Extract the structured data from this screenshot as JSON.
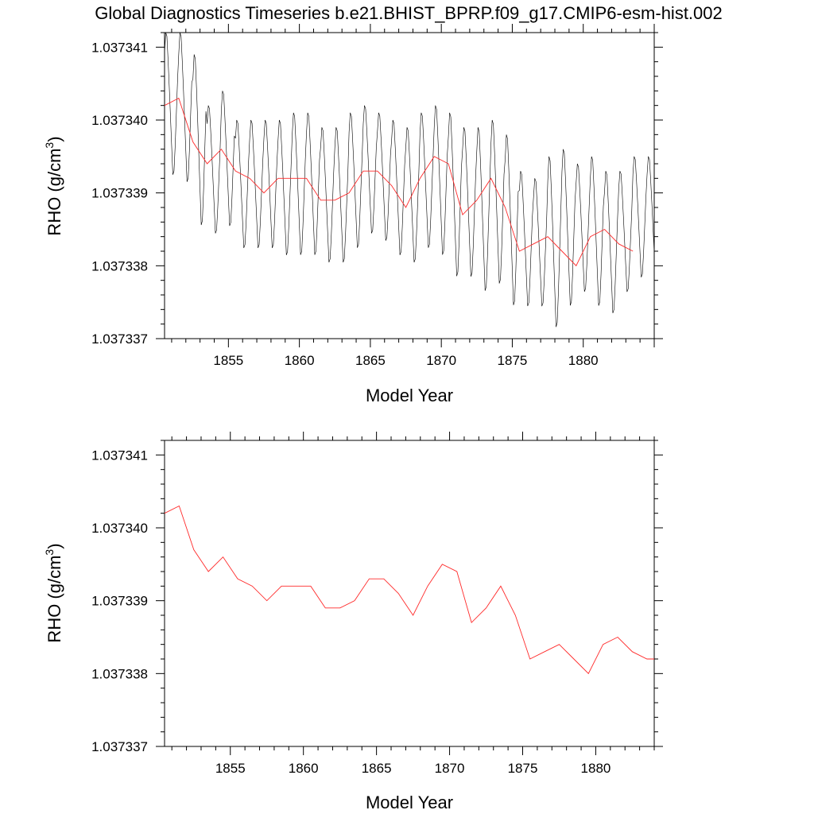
{
  "title": "Global Diagnostics Timeseries b.e21.BHIST_BPRP.f09_g17.CMIP6-esm-hist.002",
  "colors": {
    "annual": "#ff2a2a",
    "monthly": "#000000",
    "background": "#ffffff"
  },
  "chart_data": [
    {
      "type": "line",
      "title": "Global Diagnostics Timeseries b.e21.BHIST_BPRP.f09_g17.CMIP6-esm-hist.002",
      "xlabel": "Model Year",
      "ylabel": "RHO (g/cm",
      "ylabel_superscript": "3",
      "ylabel_suffix": ")",
      "xlim": [
        1850.5,
        1885
      ],
      "ylim": [
        1.037337,
        1.0373412
      ],
      "x_ticks": [
        1855,
        1860,
        1865,
        1870,
        1875,
        1880
      ],
      "x_tick_labels": [
        "1855",
        "1860",
        "1865",
        "1870",
        "1875",
        "1880"
      ],
      "y_ticks": [
        1.037337,
        1.037338,
        1.037339,
        1.03734,
        1.037341
      ],
      "y_tick_labels": [
        "1.037337",
        "1.037338",
        "1.037339",
        "1.037340",
        "1.037341"
      ],
      "grid": false,
      "series": [
        {
          "name": "monthly",
          "color": "#000000",
          "seasonal_cycle": {
            "start_year": 1850.5,
            "points_per_year": 12,
            "phase_months": [
              0.72,
              1.0,
              0.95,
              0.62,
              0.25,
              -0.15,
              -0.55,
              -0.95,
              -0.9,
              -0.55,
              -0.1,
              0.35
            ]
          },
          "yearly_peak": [
            1.0373412,
            1.0373412,
            1.0373409,
            1.0373402,
            1.0373404,
            1.03734,
            1.03734,
            1.03734,
            1.03734,
            1.0373401,
            1.0373401,
            1.0373399,
            1.0373399,
            1.0373401,
            1.0373402,
            1.0373401,
            1.03734,
            1.0373399,
            1.0373401,
            1.0373402,
            1.0373401,
            1.0373399,
            1.0373399,
            1.03734,
            1.0373398,
            1.0373393,
            1.0373392,
            1.0373395,
            1.0373396,
            1.0373394,
            1.0373395,
            1.0373393,
            1.0373393,
            1.0373395,
            1.0373395
          ],
          "yearly_trough": [
            1.0373392,
            1.0373391,
            1.0373385,
            1.0373384,
            1.0373385,
            1.0373382,
            1.0373382,
            1.0373382,
            1.0373381,
            1.0373381,
            1.0373381,
            1.037338,
            1.037338,
            1.0373382,
            1.0373384,
            1.0373383,
            1.0373381,
            1.037338,
            1.0373382,
            1.0373381,
            1.0373378,
            1.0373378,
            1.0373376,
            1.0373377,
            1.0373374,
            1.0373374,
            1.0373374,
            1.0373371,
            1.0373374,
            1.0373376,
            1.0373374,
            1.0373373,
            1.0373376,
            1.0373378,
            1.0373378
          ]
        },
        {
          "name": "annual mean",
          "color": "#ff2a2a",
          "x": [
            1850.5,
            1851.5,
            1852.5,
            1853.5,
            1854.5,
            1855.5,
            1856.5,
            1857.5,
            1858.5,
            1859.5,
            1860.5,
            1861.5,
            1862.5,
            1863.5,
            1864.5,
            1865.5,
            1866.5,
            1867.5,
            1868.5,
            1869.5,
            1870.5,
            1871.5,
            1872.5,
            1873.5,
            1874.5,
            1875.5,
            1876.5,
            1877.5,
            1878.5,
            1879.5,
            1880.5,
            1881.5,
            1882.5,
            1883.5
          ],
          "values": [
            1.0373402,
            1.0373403,
            1.0373397,
            1.0373394,
            1.0373396,
            1.0373393,
            1.0373392,
            1.037339,
            1.0373392,
            1.0373392,
            1.0373392,
            1.0373389,
            1.0373389,
            1.037339,
            1.0373393,
            1.0373393,
            1.0373391,
            1.0373388,
            1.0373392,
            1.0373395,
            1.0373394,
            1.0373387,
            1.0373389,
            1.0373392,
            1.0373388,
            1.0373382,
            1.0373383,
            1.0373384,
            1.0373382,
            1.037338,
            1.0373384,
            1.0373385,
            1.0373383,
            1.0373382
          ]
        }
      ]
    },
    {
      "type": "line",
      "title": "",
      "xlabel": "Model Year",
      "ylabel": "RHO (g/cm",
      "ylabel_superscript": "3",
      "ylabel_suffix": ")",
      "xlim": [
        1850.5,
        1884
      ],
      "ylim": [
        1.037337,
        1.0373412
      ],
      "x_ticks": [
        1855,
        1860,
        1865,
        1870,
        1875,
        1880
      ],
      "x_tick_labels": [
        "1855",
        "1860",
        "1865",
        "1870",
        "1875",
        "1880"
      ],
      "y_ticks": [
        1.037337,
        1.037338,
        1.037339,
        1.03734,
        1.037341
      ],
      "y_tick_labels": [
        "1.037337",
        "1.037338",
        "1.037339",
        "1.037340",
        "1.037341"
      ],
      "grid": false,
      "series": [
        {
          "name": "annual mean",
          "color": "#ff2a2a",
          "x": [
            1850.5,
            1851.5,
            1852.5,
            1853.5,
            1854.5,
            1855.5,
            1856.5,
            1857.5,
            1858.5,
            1859.5,
            1860.5,
            1861.5,
            1862.5,
            1863.5,
            1864.5,
            1865.5,
            1866.5,
            1867.5,
            1868.5,
            1869.5,
            1870.5,
            1871.5,
            1872.5,
            1873.5,
            1874.5,
            1875.5,
            1876.5,
            1877.5,
            1878.5,
            1879.5,
            1880.5,
            1881.5,
            1882.5,
            1883.5,
            1884.0
          ],
          "values": [
            1.0373402,
            1.0373403,
            1.0373397,
            1.0373394,
            1.0373396,
            1.0373393,
            1.0373392,
            1.037339,
            1.0373392,
            1.0373392,
            1.0373392,
            1.0373389,
            1.0373389,
            1.037339,
            1.0373393,
            1.0373393,
            1.0373391,
            1.0373388,
            1.0373392,
            1.0373395,
            1.0373394,
            1.0373387,
            1.0373389,
            1.0373392,
            1.0373388,
            1.0373382,
            1.0373383,
            1.0373384,
            1.0373382,
            1.037338,
            1.0373384,
            1.0373385,
            1.0373383,
            1.0373382,
            1.0373382
          ]
        }
      ]
    }
  ]
}
